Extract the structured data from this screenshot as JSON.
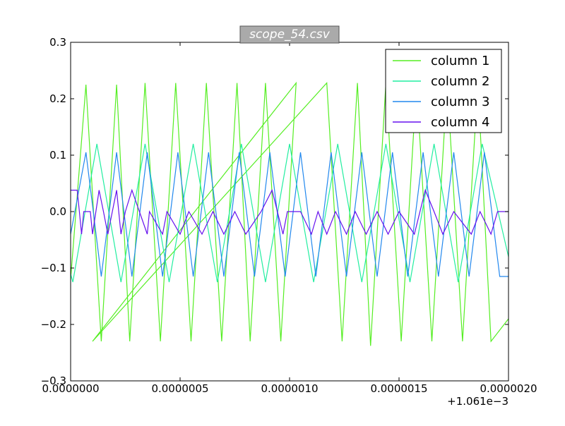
{
  "chart_data": {
    "type": "line",
    "title": "scope_54.csv",
    "xlabel": "",
    "ylabel": "",
    "x_offset_label": "+1.061e−3",
    "xlim": [
      0.0,
      2e-06
    ],
    "ylim": [
      -0.3,
      0.3
    ],
    "x_ticks": [
      {
        "value": 0.0,
        "label": "0.0000000"
      },
      {
        "value": 5e-07,
        "label": "0.0000005"
      },
      {
        "value": 1e-06,
        "label": "0.0000010"
      },
      {
        "value": 1.5e-06,
        "label": "0.0000015"
      },
      {
        "value": 2e-06,
        "label": "0.0000020"
      }
    ],
    "y_ticks": [
      {
        "value": 0.3,
        "label": "0.3"
      },
      {
        "value": 0.2,
        "label": "0.2"
      },
      {
        "value": 0.1,
        "label": "0.1"
      },
      {
        "value": 0.0,
        "label": "0.0"
      },
      {
        "value": -0.1,
        "label": "−0.1"
      },
      {
        "value": -0.2,
        "label": "−0.2"
      },
      {
        "value": -0.3,
        "label": "−0.3"
      }
    ],
    "grid": false,
    "legend_position": "top-right",
    "series": [
      {
        "name": "column 1",
        "color": "#55ee22",
        "x": [
          0.0,
          7e-08,
          1.4e-07,
          2.1e-07,
          2.7e-07,
          3.4e-07,
          4.1e-07,
          4.8e-07,
          5.5e-07,
          6.2e-07,
          6.9e-07,
          7.6e-07,
          8.2e-07,
          8.9e-07,
          9.6e-07,
          1.03e-06,
          1e-07,
          1.17e-06,
          1.24e-06,
          1.31e-06,
          1.37e-06,
          1.44e-06,
          1.51e-06,
          1.58e-06,
          1.65e-06,
          1.72e-06,
          1.79e-06,
          1.86e-06,
          1.92e-06,
          2e-06
        ],
        "y": [
          -0.12,
          0.225,
          -0.23,
          0.225,
          -0.23,
          0.228,
          -0.23,
          0.228,
          -0.23,
          0.228,
          -0.23,
          0.228,
          -0.23,
          0.228,
          -0.23,
          0.228,
          -0.23,
          0.228,
          -0.23,
          0.228,
          -0.238,
          0.228,
          -0.23,
          0.228,
          -0.23,
          0.228,
          -0.23,
          0.228,
          -0.23,
          -0.19
        ]
      },
      {
        "name": "column 2",
        "color": "#22eea0",
        "x": [
          0.0,
          1e-08,
          1.2e-07,
          2.3e-07,
          3.4e-07,
          4.5e-07,
          5.6e-07,
          6.7e-07,
          7.8e-07,
          8.9e-07,
          1e-06,
          1.11e-06,
          1.22e-06,
          1.33e-06,
          1.44e-06,
          1.55e-06,
          1.66e-06,
          1.77e-06,
          1.88e-06,
          2e-06
        ],
        "y": [
          -0.11,
          -0.125,
          0.12,
          -0.125,
          0.12,
          -0.125,
          0.12,
          -0.125,
          0.12,
          -0.125,
          0.12,
          -0.125,
          0.12,
          -0.125,
          0.12,
          -0.125,
          0.12,
          -0.125,
          0.12,
          -0.08
        ]
      },
      {
        "name": "column 3",
        "color": "#2288ee",
        "x": [
          0.0,
          7e-08,
          1.4e-07,
          2.1e-07,
          2.8e-07,
          3.5e-07,
          4.2e-07,
          4.9e-07,
          5.6e-07,
          6.3e-07,
          7e-07,
          7.7e-07,
          8.4e-07,
          9.1e-07,
          9.8e-07,
          1.05e-06,
          1.12e-06,
          1.19e-06,
          1.26e-06,
          1.33e-06,
          1.4e-06,
          1.47e-06,
          1.54e-06,
          1.61e-06,
          1.68e-06,
          1.75e-06,
          1.82e-06,
          1.89e-06,
          1.96e-06,
          2e-06
        ],
        "y": [
          -0.04,
          0.105,
          -0.115,
          0.105,
          -0.115,
          0.105,
          -0.115,
          0.105,
          -0.115,
          0.105,
          -0.115,
          0.105,
          -0.115,
          0.105,
          -0.115,
          0.105,
          -0.115,
          0.105,
          -0.115,
          0.105,
          -0.115,
          0.105,
          -0.115,
          0.105,
          -0.115,
          0.105,
          -0.115,
          0.105,
          -0.115,
          -0.115
        ]
      },
      {
        "name": "column 4",
        "color": "#6611ee",
        "x": [
          0.0,
          3e-08,
          4e-08,
          5e-08,
          6e-08,
          9e-08,
          1e-07,
          1.3e-07,
          1.5e-07,
          1.7e-07,
          2.1e-07,
          2.3e-07,
          2.5e-07,
          2.8e-07,
          3.5e-07,
          3.6e-07,
          4.2e-07,
          4.4e-07,
          5e-07,
          5.4e-07,
          6e-07,
          6.5e-07,
          7e-07,
          7.5e-07,
          8e-07,
          8.7e-07,
          9.2e-07,
          9.7e-07,
          9.9e-07,
          1.05e-06,
          1.1e-06,
          1.13e-06,
          1.17e-06,
          1.21e-06,
          1.26e-06,
          1.3e-06,
          1.35e-06,
          1.4e-06,
          1.45e-06,
          1.5e-06,
          1.57e-06,
          1.62e-06,
          1.66e-06,
          1.7e-06,
          1.75e-06,
          1.83e-06,
          1.87e-06,
          1.92e-06,
          1.95e-06,
          2e-06
        ],
        "y": [
          0.038,
          0.038,
          0.0,
          -0.04,
          0.0,
          0.0,
          -0.04,
          0.038,
          0.0,
          -0.04,
          0.038,
          -0.04,
          0.0,
          0.038,
          -0.04,
          0.0,
          -0.04,
          0.0,
          -0.04,
          0.0,
          -0.04,
          0.0,
          -0.04,
          0.0,
          -0.04,
          0.0,
          0.038,
          -0.04,
          0.0,
          0.0,
          -0.04,
          0.0,
          -0.04,
          0.0,
          -0.04,
          0.0,
          -0.04,
          0.0,
          -0.04,
          0.0,
          -0.04,
          0.038,
          0.0,
          -0.04,
          0.0,
          -0.04,
          0.0,
          -0.04,
          0.0,
          0.0
        ]
      }
    ]
  }
}
